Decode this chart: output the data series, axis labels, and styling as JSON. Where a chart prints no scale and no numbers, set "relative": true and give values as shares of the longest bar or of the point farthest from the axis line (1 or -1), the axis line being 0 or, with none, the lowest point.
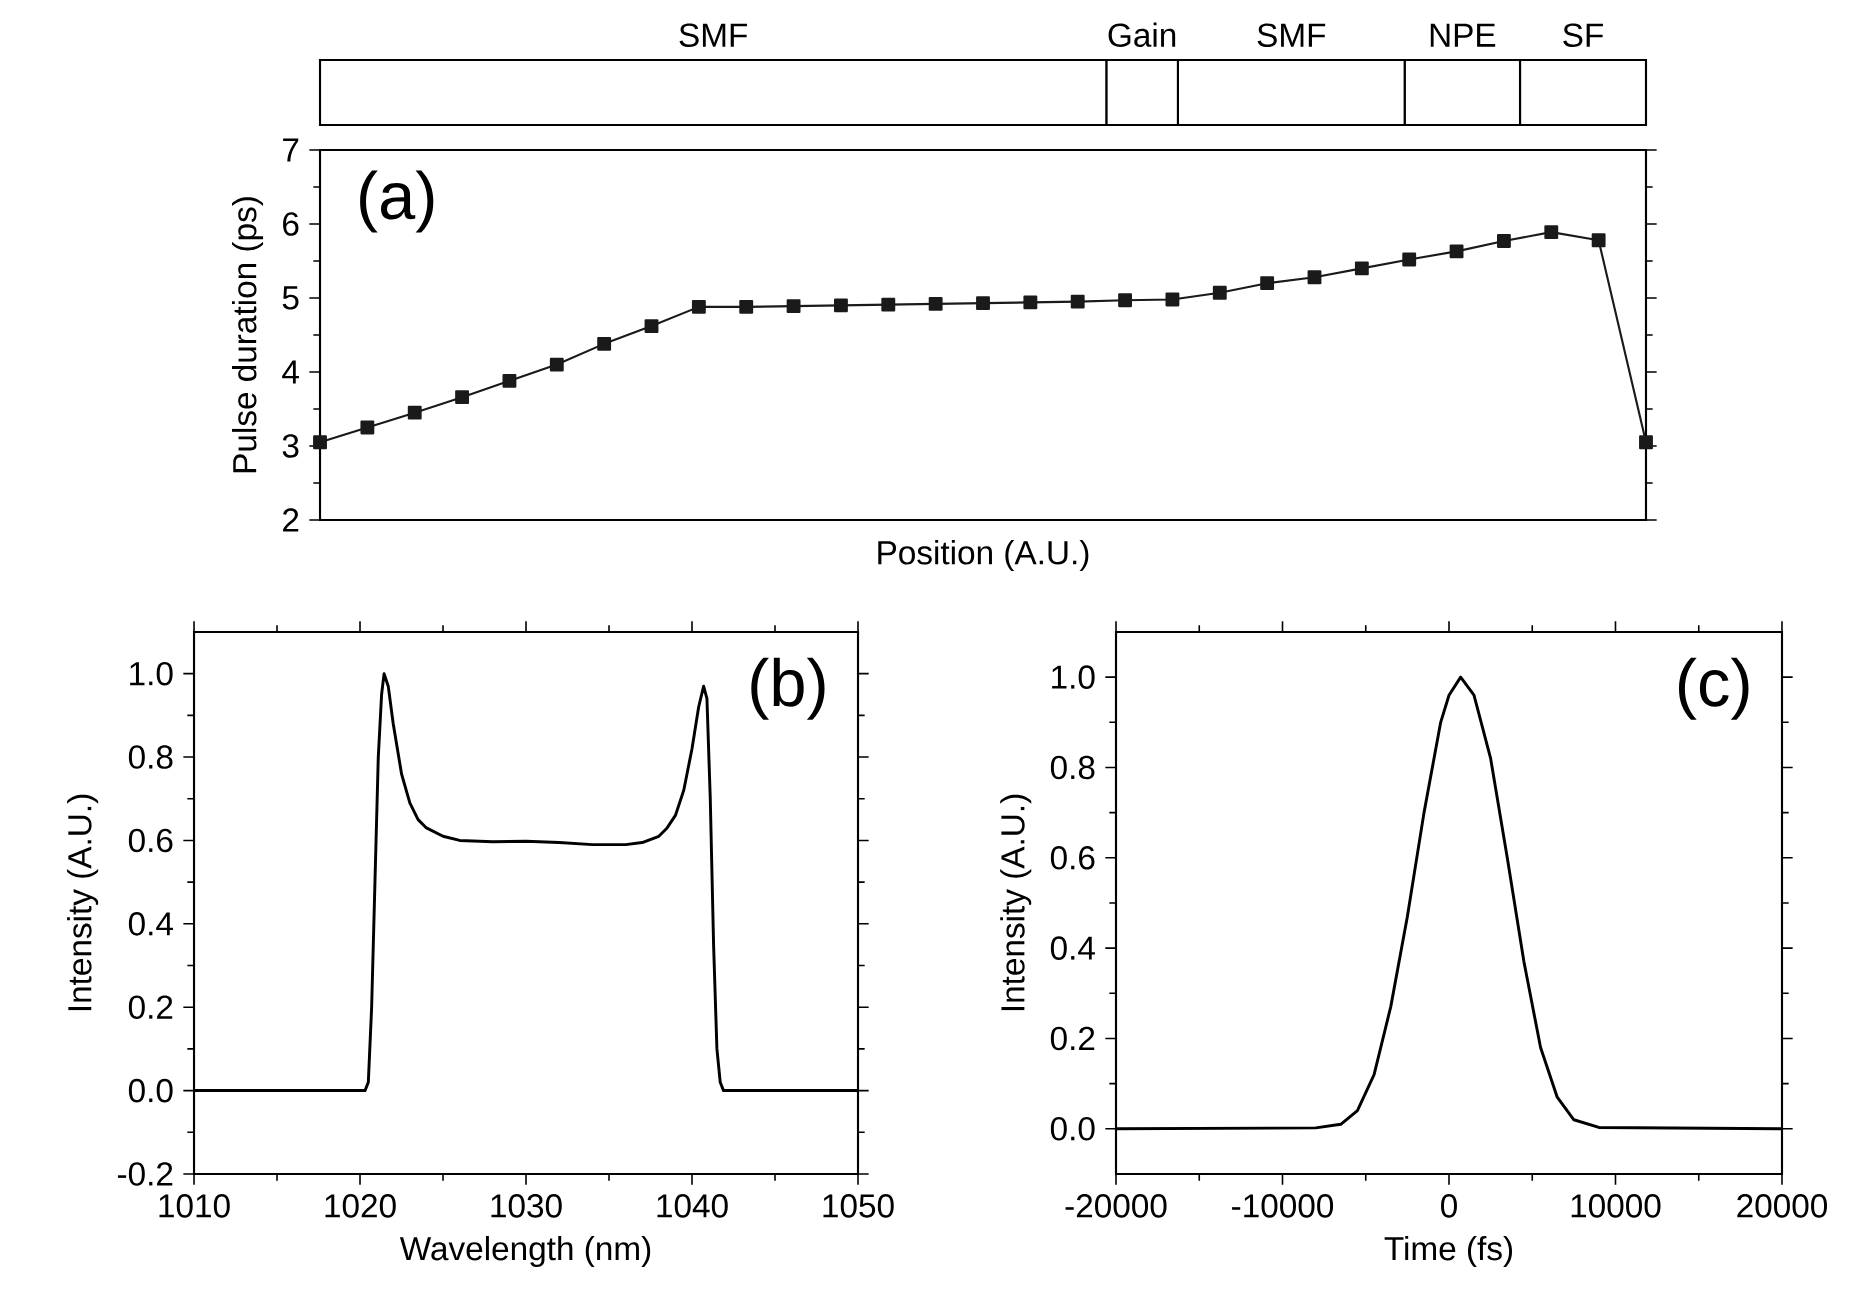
{
  "chart_data": [
    {
      "type": "bar",
      "orientation": "horizontal",
      "stacked": true,
      "relative": true,
      "categories": [
        null
      ],
      "series": [
        {
          "name": "SMF",
          "color": "#ffffff",
          "values": [
            0.593
          ]
        },
        {
          "name": "Gain",
          "color": "#ffffff",
          "values": [
            0.054
          ]
        },
        {
          "name": "SMF",
          "color": "#ffffff",
          "values": [
            0.171
          ]
        },
        {
          "name": "NPE",
          "color": "#ffffff",
          "values": [
            0.087
          ]
        },
        {
          "name": "SF",
          "color": "#ffffff",
          "values": [
            0.095
          ]
        }
      ]
    },
    {
      "type": "line",
      "xlabel": "Position (A.U.)",
      "ylabel": "Pulse duration (ps)",
      "annotations": [
        "(a)"
      ],
      "ylim": [
        2,
        7
      ],
      "yticks": [
        2,
        3,
        4,
        5,
        6,
        7
      ],
      "tick_labels": "y",
      "marker": "square",
      "categories": [
        null,
        null,
        null,
        null,
        null,
        null,
        null,
        null,
        null,
        null,
        null,
        null,
        null,
        null,
        null,
        null,
        null,
        null,
        null,
        null,
        null,
        null,
        null,
        null,
        null,
        null,
        null,
        null,
        null
      ],
      "series": [
        {
          "color": "#1a1a1a",
          "values": [
            3.05,
            3.25,
            3.45,
            3.66,
            3.88,
            4.1,
            4.38,
            4.62,
            4.88,
            4.88,
            4.89,
            4.9,
            4.91,
            4.92,
            4.93,
            4.94,
            4.95,
            4.97,
            4.98,
            5.07,
            5.2,
            5.28,
            5.4,
            5.52,
            5.63,
            5.77,
            5.89,
            5.78,
            3.05
          ]
        }
      ]
    },
    {
      "type": "line",
      "xlabel": "Wavelength (nm)",
      "ylabel": "Intensity (A.U.)",
      "annotations": [
        "(b)"
      ],
      "xlim": [
        1010,
        1050
      ],
      "xticks": [
        1010,
        1020,
        1030,
        1040,
        1050
      ],
      "ylim": [
        -0.2,
        1.1
      ],
      "yticks": [
        {
          "value": -0.2,
          "label": "-0.2"
        },
        {
          "value": 0,
          "label": "0.0"
        },
        {
          "value": 0.2,
          "label": "0.2"
        },
        {
          "value": 0.4,
          "label": "0.4"
        },
        {
          "value": 0.6,
          "label": "0.6"
        },
        {
          "value": 0.8,
          "label": "0.8"
        },
        {
          "value": 1.0,
          "label": "1.0"
        }
      ],
      "x": [
        1010,
        1020.3,
        1020.5,
        1020.7,
        1020.9,
        1021.1,
        1021.3,
        1021.45,
        1021.7,
        1022,
        1022.5,
        1023,
        1023.5,
        1024,
        1025,
        1026,
        1028,
        1030,
        1032,
        1034,
        1036,
        1037,
        1038,
        1038.5,
        1039,
        1039.5,
        1040,
        1040.4,
        1040.7,
        1040.9,
        1041.1,
        1041.3,
        1041.5,
        1041.7,
        1041.9,
        1050
      ],
      "series": [
        {
          "color": "#000000",
          "values": [
            0,
            0,
            0.02,
            0.2,
            0.5,
            0.8,
            0.95,
            1.0,
            0.97,
            0.88,
            0.76,
            0.69,
            0.65,
            0.63,
            0.61,
            0.6,
            0.597,
            0.598,
            0.595,
            0.59,
            0.59,
            0.595,
            0.61,
            0.63,
            0.66,
            0.72,
            0.82,
            0.92,
            0.97,
            0.94,
            0.7,
            0.35,
            0.1,
            0.02,
            0,
            0
          ]
        }
      ]
    },
    {
      "type": "line",
      "xlabel": "Time (fs)",
      "ylabel": "Intensity (A.U.)",
      "annotations": [
        "(c)"
      ],
      "xlim": [
        -20000,
        20000
      ],
      "xticks": [
        -20000,
        -10000,
        0,
        10000,
        20000
      ],
      "ylim": [
        -0.1,
        1.1
      ],
      "yticks": [
        {
          "value": 0,
          "label": "0.0"
        },
        {
          "value": 0.2,
          "label": "0.2"
        },
        {
          "value": 0.4,
          "label": "0.4"
        },
        {
          "value": 0.6,
          "label": "0.6"
        },
        {
          "value": 0.8,
          "label": "0.8"
        },
        {
          "value": 1.0,
          "label": "1.0"
        }
      ],
      "x": [
        -20000,
        -8000,
        -6500,
        -5500,
        -4500,
        -3500,
        -2500,
        -1500,
        -500,
        0,
        700,
        1500,
        2500,
        3500,
        4500,
        5500,
        6500,
        7500,
        9000,
        20000
      ],
      "series": [
        {
          "color": "#000000",
          "values": [
            0,
            0.002,
            0.01,
            0.04,
            0.12,
            0.27,
            0.47,
            0.7,
            0.9,
            0.96,
            1.0,
            0.96,
            0.82,
            0.6,
            0.37,
            0.18,
            0.07,
            0.02,
            0.003,
            0
          ]
        }
      ]
    }
  ]
}
